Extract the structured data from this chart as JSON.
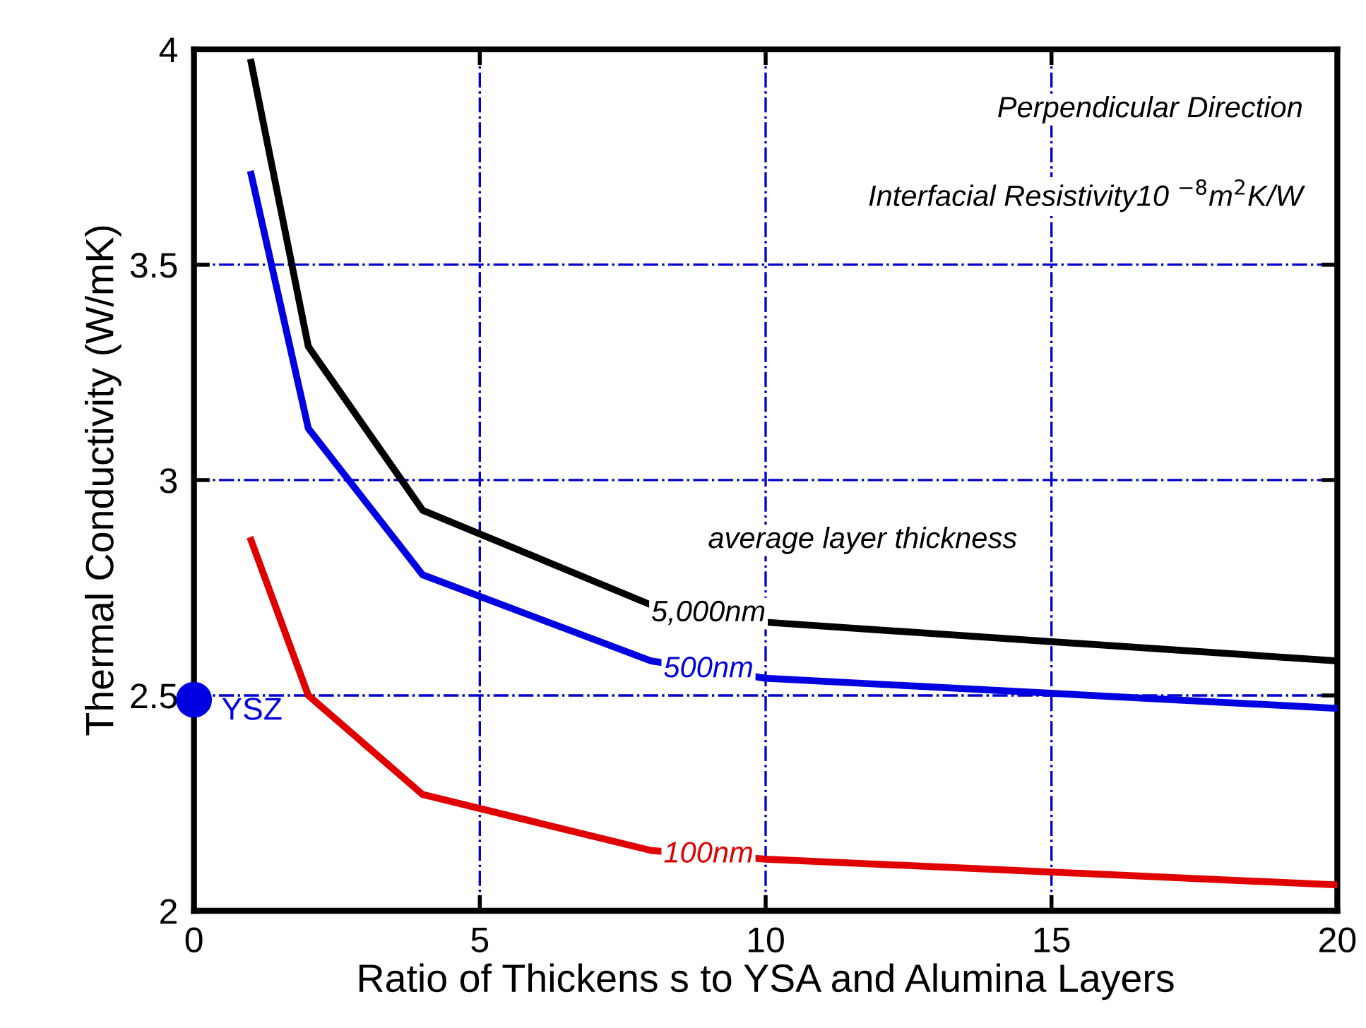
{
  "chart_data": {
    "type": "line",
    "xlabel": "Ratio of Thickens s to YSA and Alumina Layers",
    "ylabel": "Thermal Conductivity (W/mK)",
    "series": [
      {
        "name": "5,000nm",
        "color": "#000000",
        "x": [
          1,
          2,
          4,
          8,
          10,
          20
        ],
        "values": [
          3.97,
          3.31,
          2.93,
          2.71,
          2.67,
          2.58
        ]
      },
      {
        "name": "500nm",
        "color": "#0000e0",
        "x": [
          1,
          2,
          4,
          8,
          10,
          20
        ],
        "values": [
          3.71,
          3.12,
          2.78,
          2.58,
          2.54,
          2.47
        ]
      },
      {
        "name": "100nm",
        "color": "#e00000",
        "x": [
          1,
          2,
          4,
          8,
          10,
          20
        ],
        "values": [
          2.86,
          2.5,
          2.27,
          2.14,
          2.12,
          2.06
        ]
      },
      {
        "name": "YSZ",
        "type": "scatter",
        "marker": "circle",
        "color": "#0000e0",
        "x": [
          0
        ],
        "values": [
          2.49
        ]
      }
    ],
    "annotations": [
      "Perpendicular Direction",
      "Interfacial Resistivity10 $^{−8}$m$^{2}$K/W",
      "average layer thickness"
    ],
    "xlim": [
      0,
      20
    ],
    "ylim": [
      2,
      4
    ],
    "xticks": [
      0,
      5,
      10,
      15,
      20
    ],
    "yticks": [
      2,
      2.5,
      3,
      3.5,
      4
    ],
    "grid": true,
    "legend": false,
    "marker": "none",
    "line_style": "solid"
  }
}
